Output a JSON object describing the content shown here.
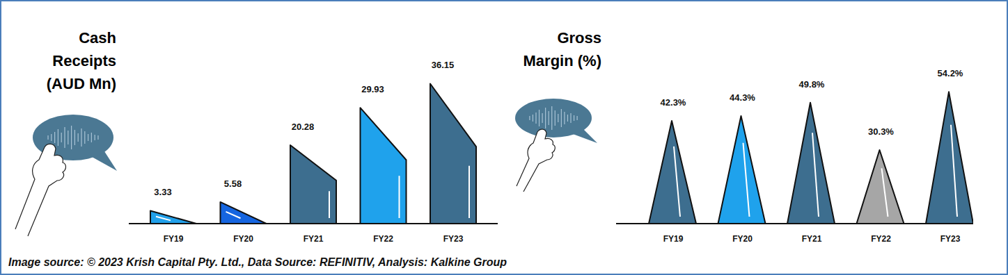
{
  "chart_data": [
    {
      "type": "bar",
      "title": "Cash Receipts (AUD Mn)",
      "marker": "wedge",
      "categories": [
        "FY19",
        "FY20",
        "FY21",
        "FY22",
        "FY23"
      ],
      "values": [
        3.33,
        5.58,
        20.28,
        29.93,
        36.15
      ],
      "colors": [
        "#21a0ea",
        "#1565e0",
        "#3d6e8f",
        "#1fa2ec",
        "#3d6e8f"
      ],
      "ylim": [
        0,
        40
      ],
      "tick_labels": "x",
      "data_labels": true
    },
    {
      "type": "bar",
      "title": "Gross Margin (%)",
      "marker": "triangle",
      "categories": [
        "FY19",
        "FY20",
        "FY21",
        "FY22",
        "FY23"
      ],
      "values": [
        42.3,
        44.3,
        49.8,
        30.3,
        54.2
      ],
      "value_labels": [
        "42.3%",
        "44.3%",
        "49.8%",
        "30.3%",
        "54.2%"
      ],
      "colors": [
        "#3d6e8f",
        "#1fa2ec",
        "#3d6e8f",
        "#a6a6a6",
        "#3d6e8f"
      ],
      "ylim": [
        0,
        60
      ],
      "tick_labels": "x",
      "data_labels": true
    }
  ],
  "source": "Image source: © 2023 Krish Capital Pty. Ltd., Data Source: REFINITIV, Analysis: Kalkine Group"
}
